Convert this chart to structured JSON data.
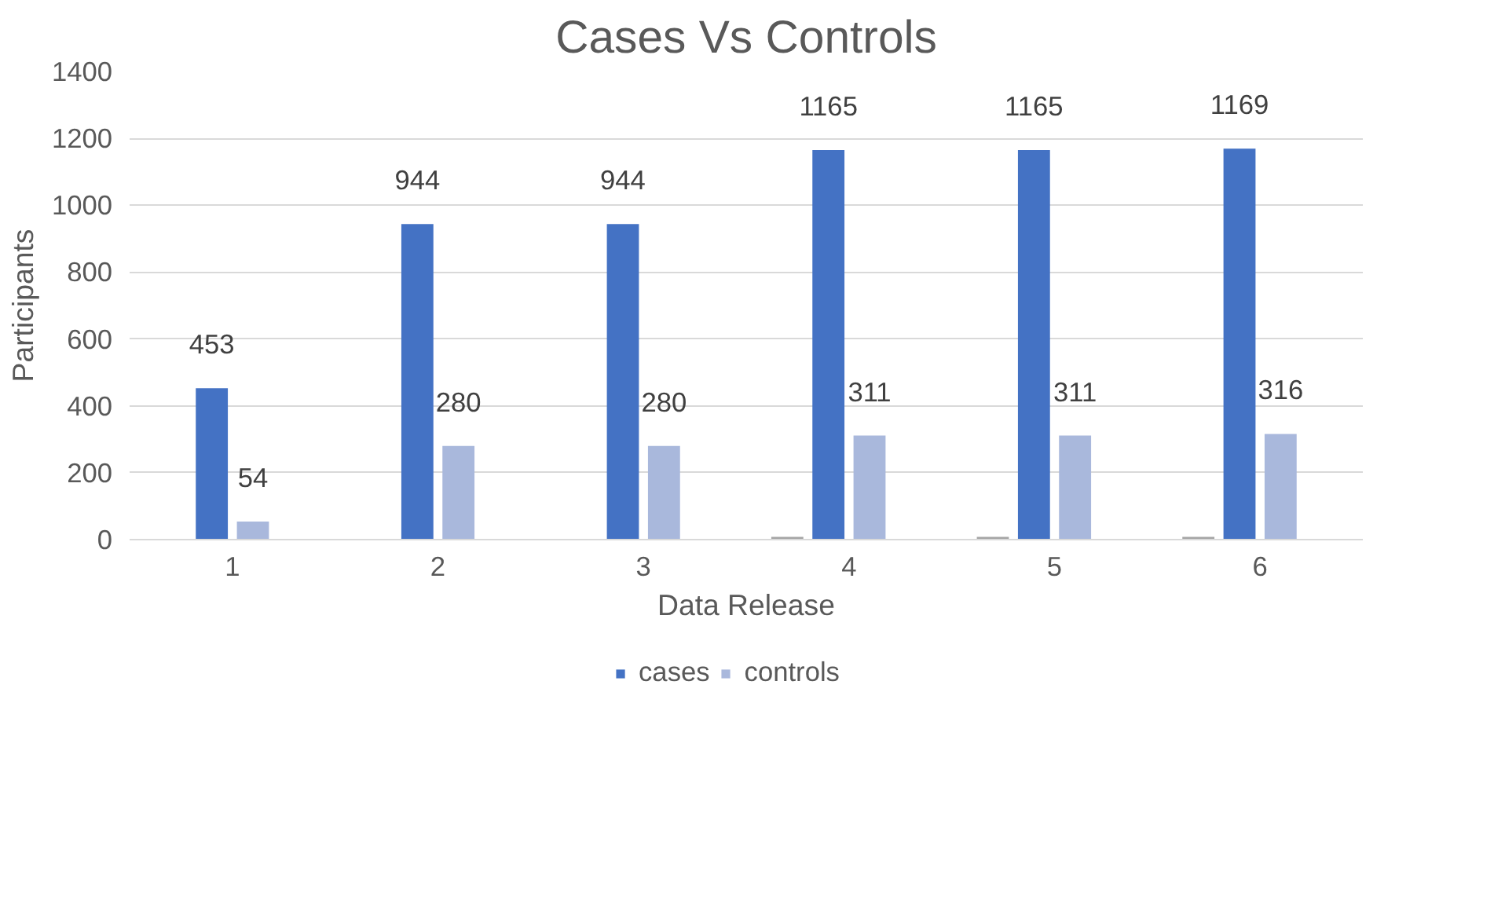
{
  "chart_data": {
    "type": "bar",
    "title": "Cases Vs Controls",
    "xlabel": "Data Release",
    "ylabel": "Participants",
    "categories": [
      "1",
      "2",
      "3",
      "4",
      "5",
      "6"
    ],
    "series": [
      {
        "color": "#a5a5a5",
        "values": [
          null,
          null,
          null,
          8,
          8,
          8
        ]
      },
      {
        "name": "cases",
        "color": "#4472c4",
        "values": [
          453,
          944,
          944,
          1165,
          1165,
          1169
        ],
        "value_labels": [
          "453",
          "944",
          "944",
          "1165",
          "1165",
          "1169"
        ]
      },
      {
        "name": "controls",
        "color": "#a9b8dc",
        "values": [
          54,
          280,
          280,
          311,
          311,
          316
        ],
        "value_labels": [
          "54",
          "280",
          "280",
          "311",
          "311",
          "316"
        ]
      }
    ],
    "ylim": [
      0,
      1400
    ],
    "yticks": [
      0,
      200,
      400,
      600,
      800,
      1000,
      1200,
      1400
    ],
    "grid": "y",
    "legend": "bottom"
  }
}
